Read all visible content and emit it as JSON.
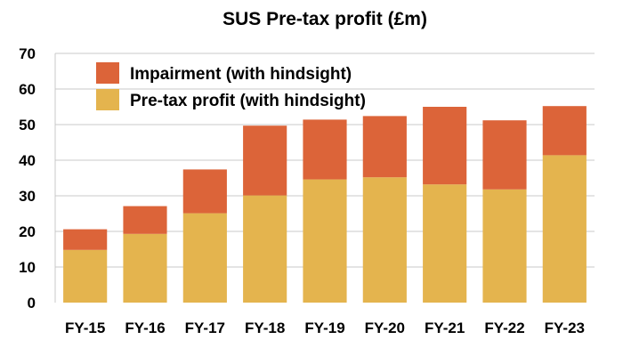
{
  "chart_data": {
    "type": "bar",
    "stacked": true,
    "title": "SUS Pre-tax profit (£m)",
    "xlabel": "",
    "ylabel": "",
    "categories": [
      "FY-15",
      "FY-16",
      "FY-17",
      "FY-18",
      "FY-19",
      "FY-20",
      "FY-21",
      "FY-22",
      "FY-23"
    ],
    "ylim": [
      0,
      70
    ],
    "yticks": [
      0,
      10,
      20,
      30,
      40,
      50,
      60,
      70
    ],
    "grid": true,
    "legend_position": "top-left",
    "series": [
      {
        "name": "Pre-tax profit (with hindsight)",
        "color": "#e4b44e",
        "values": [
          14.8,
          19.3,
          25.1,
          30.1,
          34.6,
          35.2,
          33.2,
          31.8,
          41.4
        ]
      },
      {
        "name": "Impairment (with hindsight)",
        "color": "#dc6439",
        "values": [
          5.8,
          7.8,
          12.3,
          19.6,
          16.8,
          17.2,
          21.8,
          19.4,
          13.8
        ]
      }
    ],
    "legend_order": [
      1,
      0
    ]
  }
}
